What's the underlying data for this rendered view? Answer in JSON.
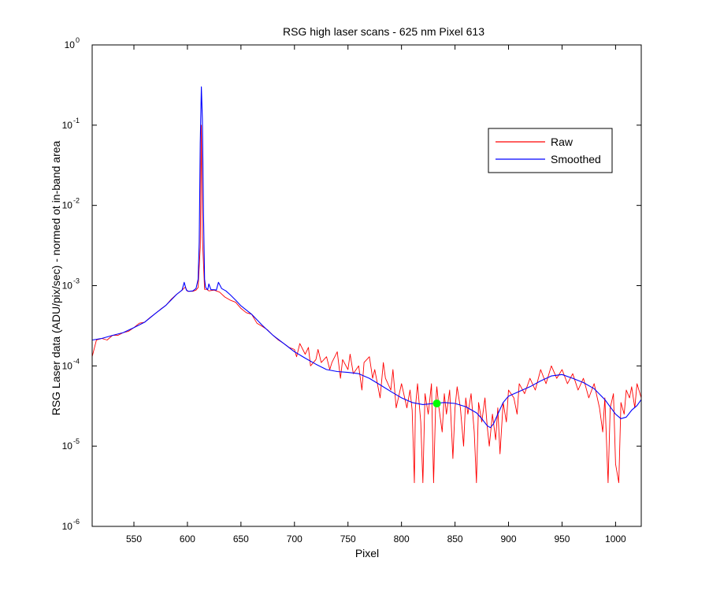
{
  "chart_data": {
    "type": "line",
    "title": "RSG high laser scans  - 625 nm    Pixel 613",
    "xlabel": "Pixel",
    "ylabel": "RSG Laser data (ADU/pix/sec) - normed ot in-band area",
    "xlim": [
      511,
      1024
    ],
    "ylim": [
      1e-06,
      1
    ],
    "yscale": "log",
    "grid": false,
    "legend_position": "top-right",
    "x_ticks": [
      550,
      600,
      650,
      700,
      750,
      800,
      850,
      900,
      950,
      1000
    ],
    "y_ticks": [
      {
        "mantissa": "10",
        "exponent": "-6",
        "value": 1e-06
      },
      {
        "mantissa": "10",
        "exponent": "-5",
        "value": 1e-05
      },
      {
        "mantissa": "10",
        "exponent": "-4",
        "value": 0.0001
      },
      {
        "mantissa": "10",
        "exponent": "-3",
        "value": 0.001
      },
      {
        "mantissa": "10",
        "exponent": "-2",
        "value": 0.01
      },
      {
        "mantissa": "10",
        "exponent": "-1",
        "value": 0.1
      },
      {
        "mantissa": "10",
        "exponent": "0",
        "value": 1
      }
    ],
    "series": [
      {
        "name": "Raw",
        "color": "#ff0000",
        "x": [
          511,
          515,
          520,
          525,
          530,
          535,
          540,
          545,
          550,
          555,
          560,
          565,
          570,
          575,
          580,
          585,
          590,
          595,
          598,
          600,
          605,
          608,
          610,
          612,
          613,
          614,
          616,
          618,
          620,
          625,
          630,
          635,
          640,
          645,
          650,
          655,
          660,
          665,
          670,
          675,
          680,
          685,
          690,
          695,
          700,
          702,
          705,
          710,
          713,
          715,
          720,
          722,
          725,
          730,
          733,
          735,
          740,
          743,
          745,
          750,
          752,
          755,
          760,
          763,
          765,
          770,
          773,
          775,
          780,
          783,
          785,
          790,
          792,
          795,
          800,
          805,
          808,
          810,
          812,
          813,
          815,
          818,
          820,
          822,
          825,
          828,
          830,
          832,
          833,
          835,
          838,
          840,
          842,
          845,
          848,
          850,
          852,
          855,
          858,
          860,
          862,
          865,
          868,
          870,
          872,
          875,
          878,
          880,
          882,
          885,
          888,
          890,
          892,
          895,
          898,
          900,
          905,
          908,
          910,
          915,
          920,
          925,
          930,
          935,
          940,
          945,
          950,
          955,
          960,
          965,
          970,
          975,
          980,
          985,
          988,
          990,
          993,
          995,
          998,
          1000,
          1003,
          1005,
          1008,
          1010,
          1013,
          1015,
          1018,
          1020,
          1024
        ],
        "y": [
          0.00013,
          0.00021,
          0.00022,
          0.00021,
          0.00024,
          0.00024,
          0.00026,
          0.00027,
          0.0003,
          0.00034,
          0.00035,
          0.0004,
          0.00045,
          0.00051,
          0.00057,
          0.00068,
          0.00078,
          0.00088,
          0.00096,
          0.00085,
          0.00085,
          0.00088,
          0.00095,
          0.003,
          0.1,
          0.004,
          0.0009,
          0.0009,
          0.00086,
          0.00088,
          0.00083,
          0.00072,
          0.00066,
          0.00062,
          0.00052,
          0.00046,
          0.00044,
          0.00034,
          0.00031,
          0.00028,
          0.00024,
          0.00021,
          0.00019,
          0.00017,
          0.00016,
          0.00013,
          0.00019,
          0.00014,
          0.00017,
          0.0001,
          0.00012,
          0.00016,
          0.00011,
          0.00013,
          9e-05,
          0.00011,
          0.00015,
          7e-05,
          0.00012,
          9e-05,
          0.00014,
          8e-05,
          0.0001,
          5e-05,
          0.00011,
          0.00013,
          7e-05,
          9e-05,
          4e-05,
          0.00011,
          7e-05,
          5e-05,
          9e-05,
          3e-05,
          6e-05,
          3e-05,
          5e-05,
          2.8e-05,
          3.5e-06,
          3e-05,
          6e-05,
          2e-05,
          3.5e-06,
          4.5e-05,
          2.5e-05,
          6e-05,
          3.5e-06,
          3.5e-05,
          5.5e-05,
          3e-05,
          1.5e-05,
          4.5e-05,
          2.5e-05,
          5e-05,
          7e-06,
          3e-05,
          5.5e-05,
          3e-05,
          1e-05,
          4e-05,
          2.5e-05,
          4.5e-05,
          1.5e-05,
          3.5e-06,
          3.5e-05,
          2e-05,
          4e-05,
          1.8e-05,
          1e-05,
          2.5e-05,
          1.2e-05,
          3e-05,
          8e-06,
          3.5e-05,
          2e-05,
          5e-05,
          4e-05,
          2.5e-05,
          6e-05,
          4.5e-05,
          7e-05,
          5e-05,
          9e-05,
          6e-05,
          0.0001,
          7e-05,
          9e-05,
          6e-05,
          8e-05,
          5e-05,
          7e-05,
          4e-05,
          6e-05,
          3e-05,
          1.5e-05,
          4e-05,
          3.5e-06,
          3e-05,
          4.5e-05,
          6e-06,
          3.5e-06,
          3.5e-05,
          2.5e-05,
          5e-05,
          4e-05,
          5.5e-05,
          3e-05,
          6e-05,
          4e-05
        ]
      },
      {
        "name": "Smoothed",
        "color": "#0000ff",
        "x": [
          511,
          520,
          530,
          540,
          550,
          560,
          570,
          580,
          590,
          595,
          597,
          599,
          601,
          605,
          608,
          610,
          611,
          612,
          613,
          614,
          615,
          616,
          617,
          619,
          620,
          622,
          625,
          627,
          629,
          632,
          636,
          640,
          645,
          650,
          660,
          670,
          680,
          690,
          700,
          710,
          720,
          730,
          740,
          750,
          760,
          770,
          780,
          790,
          800,
          810,
          820,
          830,
          840,
          850,
          860,
          870,
          875,
          880,
          883,
          886,
          890,
          895,
          900,
          910,
          920,
          930,
          940,
          950,
          960,
          970,
          980,
          990,
          1000,
          1005,
          1010,
          1015,
          1020,
          1024
        ],
        "y": [
          0.00021,
          0.00022,
          0.00024,
          0.00026,
          0.0003,
          0.00035,
          0.00045,
          0.00057,
          0.00078,
          0.00088,
          0.0011,
          0.00088,
          0.00085,
          0.00086,
          0.00092,
          0.0012,
          0.0035,
          0.06,
          0.3,
          0.12,
          0.008,
          0.0012,
          0.00095,
          0.00089,
          0.00105,
          0.00089,
          0.00089,
          0.00088,
          0.0011,
          0.00092,
          0.00086,
          0.00077,
          0.00066,
          0.00056,
          0.00044,
          0.00032,
          0.00024,
          0.00019,
          0.00015,
          0.000125,
          0.000105,
          9e-05,
          8.5e-05,
          8.3e-05,
          8e-05,
          7e-05,
          5.8e-05,
          4.8e-05,
          4e-05,
          3.5e-05,
          3.3e-05,
          3.4e-05,
          3.5e-05,
          3.4e-05,
          3.1e-05,
          2.6e-05,
          2.2e-05,
          1.8e-05,
          1.7e-05,
          1.9e-05,
          2.5e-05,
          3.5e-05,
          4.2e-05,
          4.8e-05,
          5.5e-05,
          6.5e-05,
          7.5e-05,
          7.8e-05,
          7e-05,
          6.2e-05,
          5.2e-05,
          3.8e-05,
          2.5e-05,
          2.2e-05,
          2.3e-05,
          2.8e-05,
          3.2e-05,
          3.8e-05
        ]
      }
    ],
    "highlight_point": {
      "x": 833,
      "y": 3.4e-05,
      "color": "#00ff00"
    }
  }
}
